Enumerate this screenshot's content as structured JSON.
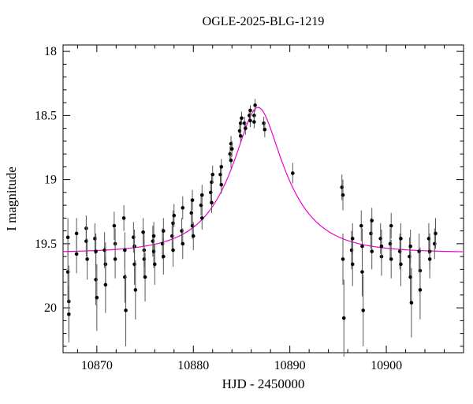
{
  "chart_data": {
    "type": "scatter",
    "title": "OGLE-2025-BLG-1219",
    "xlabel": "HJD - 2450000",
    "ylabel": "I magnitude",
    "xlim": [
      10866.5,
      10908
    ],
    "ylim": [
      17.95,
      20.35
    ],
    "y_inverted": true,
    "grid": false,
    "legend": "none",
    "xticks": [
      {
        "v": 10870,
        "label": "10870"
      },
      {
        "v": 10880,
        "label": "10880"
      },
      {
        "v": 10890,
        "label": "10890"
      },
      {
        "v": 10900,
        "label": "10900"
      }
    ],
    "xtick_minor_step": 2,
    "yticks": [
      {
        "v": 18,
        "label": "18"
      },
      {
        "v": 18.5,
        "label": "18.5"
      },
      {
        "v": 19,
        "label": "19"
      },
      {
        "v": 19.5,
        "label": "19.5"
      },
      {
        "v": 20,
        "label": "20"
      }
    ],
    "ytick_minor_step": 0.1,
    "point_color": "#000000",
    "errorbar_color": "#555555",
    "model": {
      "type": "microlensing-point-lens",
      "t0": 10886.7,
      "tE": 5.5,
      "u0": 0.37,
      "I0": 19.57,
      "peak_mag": 18.44,
      "color": "#ee00cc"
    },
    "points": [
      [
        10867.0,
        19.45,
        0.15
      ],
      [
        10867.0,
        19.72,
        0.22
      ],
      [
        10867.1,
        19.95,
        0.28
      ],
      [
        10867.1,
        20.05,
        0.22
      ],
      [
        10867.9,
        19.42,
        0.12
      ],
      [
        10867.9,
        19.58,
        0.15
      ],
      [
        10868.9,
        19.38,
        0.1
      ],
      [
        10868.9,
        19.48,
        0.12
      ],
      [
        10869.0,
        19.62,
        0.16
      ],
      [
        10869.8,
        19.46,
        0.12
      ],
      [
        10869.9,
        19.56,
        0.14
      ],
      [
        10869.9,
        19.78,
        0.2
      ],
      [
        10870.0,
        19.92,
        0.26
      ],
      [
        10870.8,
        19.55,
        0.14
      ],
      [
        10870.9,
        19.66,
        0.17
      ],
      [
        10870.9,
        19.82,
        0.22
      ],
      [
        10871.8,
        19.36,
        0.11
      ],
      [
        10871.9,
        19.5,
        0.12
      ],
      [
        10871.9,
        19.62,
        0.15
      ],
      [
        10872.8,
        19.3,
        0.1
      ],
      [
        10872.9,
        19.55,
        0.14
      ],
      [
        10872.9,
        19.76,
        0.2
      ],
      [
        10873.0,
        20.02,
        0.28
      ],
      [
        10873.8,
        19.45,
        0.12
      ],
      [
        10873.9,
        19.52,
        0.13
      ],
      [
        10873.9,
        19.66,
        0.16
      ],
      [
        10874.0,
        19.86,
        0.23
      ],
      [
        10874.8,
        19.41,
        0.11
      ],
      [
        10874.9,
        19.55,
        0.13
      ],
      [
        10874.9,
        19.62,
        0.15
      ],
      [
        10875.0,
        19.76,
        0.19
      ],
      [
        10875.8,
        19.48,
        0.12
      ],
      [
        10875.9,
        19.56,
        0.13
      ],
      [
        10875.9,
        19.44,
        0.11
      ],
      [
        10876.0,
        19.66,
        0.16
      ],
      [
        10876.8,
        19.5,
        0.12
      ],
      [
        10876.9,
        19.4,
        0.1
      ],
      [
        10876.9,
        19.6,
        0.14
      ],
      [
        10877.8,
        19.44,
        0.11
      ],
      [
        10877.9,
        19.34,
        0.1
      ],
      [
        10877.9,
        19.55,
        0.13
      ],
      [
        10878.0,
        19.28,
        0.09
      ],
      [
        10878.8,
        19.4,
        0.1
      ],
      [
        10878.9,
        19.22,
        0.09
      ],
      [
        10878.9,
        19.5,
        0.12
      ],
      [
        10879.8,
        19.26,
        0.09
      ],
      [
        10879.9,
        19.36,
        0.1
      ],
      [
        10879.9,
        19.16,
        0.08
      ],
      [
        10880.0,
        19.44,
        0.11
      ],
      [
        10880.8,
        19.2,
        0.08
      ],
      [
        10880.9,
        19.12,
        0.08
      ],
      [
        10880.9,
        19.3,
        0.09
      ],
      [
        10881.8,
        19.1,
        0.08
      ],
      [
        10881.9,
        19.02,
        0.07
      ],
      [
        10881.9,
        19.18,
        0.08
      ],
      [
        10882.0,
        18.96,
        0.07
      ],
      [
        10882.8,
        18.96,
        0.07
      ],
      [
        10882.9,
        19.04,
        0.07
      ],
      [
        10882.9,
        18.9,
        0.06
      ],
      [
        10883.8,
        18.8,
        0.06
      ],
      [
        10883.9,
        18.72,
        0.06
      ],
      [
        10883.9,
        18.85,
        0.06
      ],
      [
        10884.0,
        18.76,
        0.06
      ],
      [
        10884.8,
        18.62,
        0.05
      ],
      [
        10884.9,
        18.56,
        0.05
      ],
      [
        10884.9,
        18.66,
        0.05
      ],
      [
        10885.0,
        18.52,
        0.05
      ],
      [
        10885.3,
        18.56,
        0.05
      ],
      [
        10885.4,
        18.6,
        0.05
      ],
      [
        10885.8,
        18.5,
        0.05
      ],
      [
        10885.9,
        18.54,
        0.05
      ],
      [
        10885.9,
        18.46,
        0.04
      ],
      [
        10886.3,
        18.5,
        0.04
      ],
      [
        10886.3,
        18.55,
        0.05
      ],
      [
        10886.4,
        18.42,
        0.05
      ],
      [
        10887.3,
        18.56,
        0.05
      ],
      [
        10887.4,
        18.61,
        0.06
      ],
      [
        10890.3,
        18.95,
        0.08
      ],
      [
        10895.4,
        19.06,
        0.1
      ],
      [
        10895.5,
        19.12,
        0.12
      ],
      [
        10895.5,
        19.62,
        0.2
      ],
      [
        10895.6,
        20.08,
        0.3
      ],
      [
        10896.4,
        19.55,
        0.15
      ],
      [
        10896.5,
        19.46,
        0.12
      ],
      [
        10896.5,
        19.66,
        0.17
      ],
      [
        10897.4,
        19.36,
        0.12
      ],
      [
        10897.5,
        19.52,
        0.14
      ],
      [
        10897.5,
        19.72,
        0.19
      ],
      [
        10897.6,
        20.02,
        0.28
      ],
      [
        10898.4,
        19.42,
        0.12
      ],
      [
        10898.5,
        19.56,
        0.14
      ],
      [
        10898.5,
        19.32,
        0.1
      ],
      [
        10899.4,
        19.46,
        0.12
      ],
      [
        10899.5,
        19.6,
        0.15
      ],
      [
        10899.5,
        19.52,
        0.13
      ],
      [
        10900.4,
        19.5,
        0.12
      ],
      [
        10900.5,
        19.36,
        0.1
      ],
      [
        10900.5,
        19.62,
        0.15
      ],
      [
        10901.4,
        19.56,
        0.14
      ],
      [
        10901.5,
        19.66,
        0.17
      ],
      [
        10901.5,
        19.46,
        0.12
      ],
      [
        10902.4,
        19.6,
        0.15
      ],
      [
        10902.5,
        19.76,
        0.2
      ],
      [
        10902.5,
        19.52,
        0.13
      ],
      [
        10902.6,
        19.96,
        0.27
      ],
      [
        10903.4,
        19.56,
        0.14
      ],
      [
        10903.5,
        19.71,
        0.18
      ],
      [
        10903.5,
        19.86,
        0.23
      ],
      [
        10904.4,
        19.46,
        0.12
      ],
      [
        10904.5,
        19.56,
        0.14
      ],
      [
        10904.5,
        19.62,
        0.15
      ],
      [
        10905.0,
        19.5,
        0.12
      ],
      [
        10905.1,
        19.42,
        0.12
      ]
    ]
  }
}
